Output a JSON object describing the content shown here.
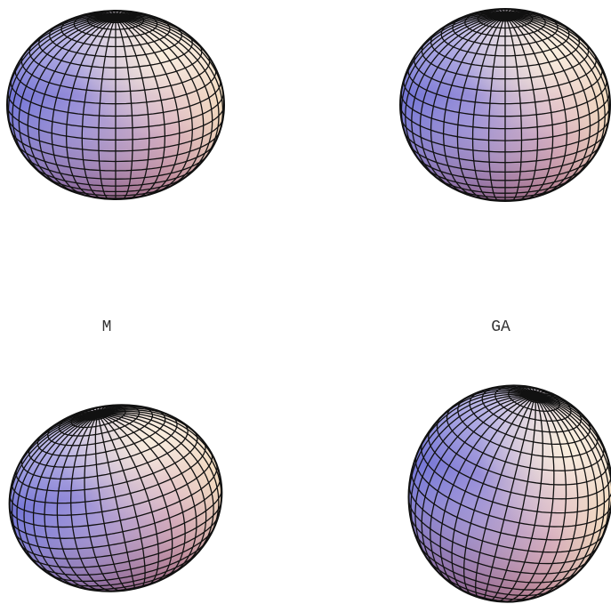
{
  "figure": {
    "panels": [
      {
        "id": "top-left",
        "label": "M"
      },
      {
        "id": "top-right",
        "label": "GA"
      },
      {
        "id": "bottom-left",
        "label": ""
      },
      {
        "id": "bottom-right",
        "label": ""
      }
    ],
    "colors": {
      "background": "#ffffff",
      "grid_line": "#000000",
      "surface_blue": "#7f83d8",
      "surface_purple": "#a88fc8",
      "surface_pink": "#e0a0a8",
      "surface_cream": "#f5ecd0"
    }
  }
}
